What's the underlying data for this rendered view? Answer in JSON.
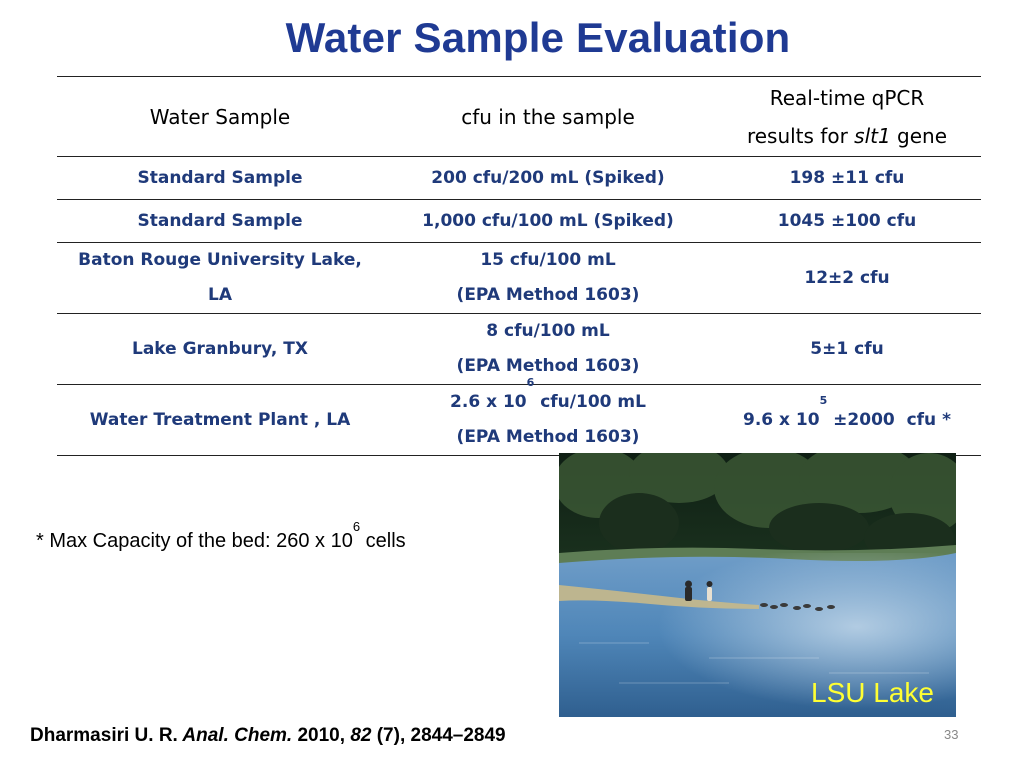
{
  "title": "Water Sample Evaluation",
  "table": {
    "headers": {
      "col1": "Water Sample",
      "col2": "cfu in the sample",
      "col3_line1": "Real-time qPCR",
      "col3_line2_pre": "results for ",
      "col3_line2_italic": "slt1",
      "col3_line2_post": " gene"
    },
    "rows": [
      {
        "sample": "Standard Sample",
        "cfu": "200 cfu/200 mL (Spiked)",
        "qpcr_pre": "198 ",
        "pm": "±",
        "qpcr_post": "11 cfu"
      },
      {
        "sample": "Standard Sample",
        "cfu": "1,000 cfu/100 mL (Spiked)",
        "qpcr_pre": "1045 ",
        "pm": "±",
        "qpcr_post": "100 cfu"
      },
      {
        "sample_line1": "Baton Rouge University Lake,",
        "sample_line2": "LA",
        "cfu_line1": "15 cfu/100 mL",
        "cfu_line2": "(EPA Method 1603)",
        "qpcr_pre": "12",
        "pm": "±",
        "qpcr_post": "2 cfu"
      },
      {
        "sample": "Lake Granbury, TX",
        "cfu_line1": "8 cfu/100 mL",
        "cfu_line2": "(EPA Method 1603)",
        "qpcr_pre": "5",
        "pm": "±",
        "qpcr_post": "1 cfu"
      },
      {
        "sample": "Water Treatment Plant , LA",
        "cfu_line1_base": "2.6 x 10",
        "cfu_line1_exp": "6",
        "cfu_line1_post": " cfu/100 mL",
        "cfu_line2": "(EPA Method 1603)",
        "qpcr_base": "9.6 x 10",
        "qpcr_exp": "5",
        "qpcr_space": " ",
        "pm": "±",
        "qpcr_post": "2000  cfu *"
      }
    ]
  },
  "note": {
    "pre": "* Max Capacity of the bed: 260 x 10",
    "exp": "6",
    "post": " cells"
  },
  "photo": {
    "caption": "LSU Lake",
    "colors": {
      "water": "#4f86b8",
      "trees": "#1e3320",
      "caption": "#ffff33"
    }
  },
  "citation": {
    "authors": "Dharmasiri U. R.",
    "journal": " Anal. Chem.",
    "year": " 2010, ",
    "volume": "82",
    "rest": " (7), 2844–2849"
  },
  "page_number": "33",
  "colors": {
    "title": "#1f3a93",
    "table_text": "#1f3a7a"
  }
}
